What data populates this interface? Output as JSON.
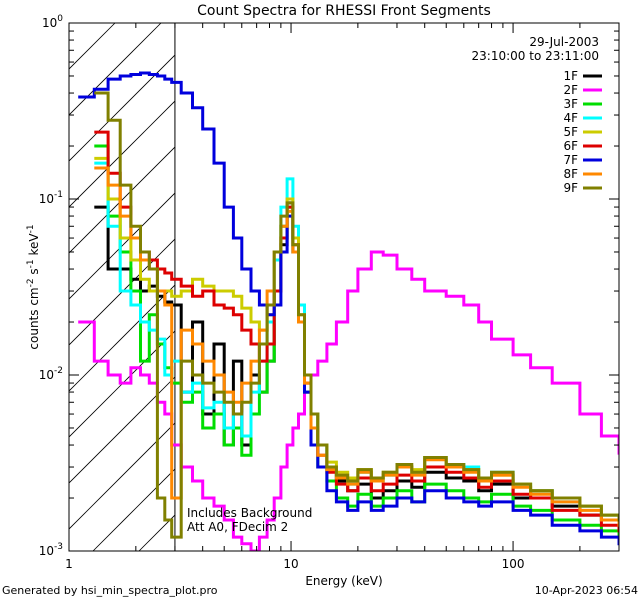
{
  "chart_data": {
    "type": "line",
    "title": "Count Spectra for RHESSI Front Segments",
    "xlabel": "Energy (keV)",
    "ylabel_parts": {
      "base": "counts cm",
      "sup1": "-2",
      "mid": " s",
      "sup2": "-1",
      "end": " keV",
      "sup3": "-1"
    },
    "x_scale": "log",
    "y_scale": "log",
    "xlim": [
      1,
      300
    ],
    "ylim": [
      0.001,
      1.0
    ],
    "x_ticks": [
      {
        "v": 1,
        "label": "1"
      },
      {
        "v": 10,
        "label": "10"
      },
      {
        "v": 100,
        "label": "100"
      }
    ],
    "y_ticks": [
      {
        "v": 1,
        "base": "10",
        "exp": "0"
      },
      {
        "v": 0.1,
        "base": "10",
        "exp": "-1"
      },
      {
        "v": 0.01,
        "base": "10",
        "exp": "-2"
      },
      {
        "v": 0.001,
        "base": "10",
        "exp": "-3"
      }
    ],
    "date": "29-Jul-2003",
    "time_range": "23:10:00 to 23:11:00",
    "hatched_region_max_x": 3.0,
    "annotation_lines": [
      "Includes Background",
      "Att A0, FDecim 2"
    ],
    "legend_position": "top-right",
    "series": [
      {
        "name": "1F",
        "color": "#000000",
        "x": [
          1.3,
          1.5,
          1.7,
          1.9,
          2.1,
          2.3,
          2.5,
          2.7,
          2.9,
          3.2,
          3.6,
          4.0,
          4.5,
          5.0,
          5.5,
          6.0,
          6.6,
          7.2,
          7.8,
          8.4,
          9.0,
          9.6,
          10.2,
          10.8,
          11.5,
          12.3,
          13.2,
          14.5,
          16,
          18,
          20,
          23,
          26,
          30,
          35,
          40,
          50,
          60,
          70,
          80,
          100,
          120,
          150,
          200,
          250,
          300
        ],
        "y": [
          0.09,
          0.04,
          0.04,
          0.035,
          0.03,
          0.032,
          0.028,
          0.026,
          0.025,
          0.008,
          0.02,
          0.006,
          0.015,
          0.004,
          0.012,
          0.004,
          0.01,
          0.008,
          0.012,
          0.03,
          0.055,
          0.095,
          0.06,
          0.02,
          0.01,
          0.006,
          0.004,
          0.003,
          0.0025,
          0.0022,
          0.0024,
          0.002,
          0.0022,
          0.0025,
          0.0023,
          0.0028,
          0.0026,
          0.0025,
          0.0022,
          0.0024,
          0.002,
          0.0022,
          0.0018,
          0.0016,
          0.0015,
          0.0014
        ]
      },
      {
        "name": "2F",
        "color": "#ff00ff",
        "x": [
          1.1,
          1.3,
          1.5,
          1.7,
          1.9,
          2.1,
          2.3,
          2.5,
          2.7,
          2.9,
          3.2,
          3.6,
          4.0,
          4.5,
          5.0,
          5.5,
          6.0,
          6.6,
          7.2,
          7.8,
          8.4,
          9.0,
          9.6,
          10.2,
          10.8,
          11.5,
          12.3,
          13.2,
          14.5,
          16,
          18,
          20,
          23,
          26,
          30,
          35,
          40,
          50,
          60,
          70,
          80,
          100,
          120,
          150,
          200,
          250,
          300
        ],
        "y": [
          0.02,
          0.012,
          0.01,
          0.009,
          0.011,
          0.01,
          0.009,
          0.007,
          0.006,
          0.004,
          0.003,
          0.0025,
          0.002,
          0.0018,
          0.0015,
          0.0012,
          0.0011,
          0.001,
          0.0012,
          0.0015,
          0.002,
          0.003,
          0.004,
          0.005,
          0.006,
          0.008,
          0.01,
          0.012,
          0.015,
          0.02,
          0.03,
          0.04,
          0.05,
          0.048,
          0.04,
          0.035,
          0.03,
          0.028,
          0.025,
          0.02,
          0.016,
          0.013,
          0.011,
          0.009,
          0.006,
          0.0045,
          0.0036
        ]
      },
      {
        "name": "3F",
        "color": "#00dd00",
        "x": [
          1.3,
          1.5,
          1.7,
          1.9,
          2.1,
          2.3,
          2.5,
          2.7,
          2.9,
          3.2,
          3.6,
          4.0,
          4.5,
          5.0,
          5.5,
          6.0,
          6.6,
          7.2,
          7.8,
          8.4,
          9.0,
          9.6,
          10.2,
          10.8,
          11.5,
          12.3,
          13.2,
          14.5,
          16,
          18,
          20,
          23,
          26,
          30,
          35,
          40,
          50,
          60,
          70,
          80,
          100,
          120,
          150,
          200,
          250,
          300
        ],
        "y": [
          0.2,
          0.08,
          0.05,
          0.03,
          0.012,
          0.022,
          0.015,
          0.011,
          0.009,
          0.007,
          0.008,
          0.005,
          0.006,
          0.004,
          0.005,
          0.0035,
          0.006,
          0.008,
          0.012,
          0.03,
          0.07,
          0.09,
          0.05,
          0.02,
          0.008,
          0.005,
          0.003,
          0.0025,
          0.002,
          0.0018,
          0.0021,
          0.0018,
          0.002,
          0.0022,
          0.0019,
          0.0024,
          0.0022,
          0.002,
          0.0019,
          0.0021,
          0.0018,
          0.0017,
          0.0015,
          0.0014,
          0.0013,
          0.0012
        ]
      },
      {
        "name": "4F",
        "color": "#00ffff",
        "x": [
          1.3,
          1.5,
          1.7,
          1.9,
          2.1,
          2.3,
          2.5,
          2.7,
          2.9,
          3.2,
          3.6,
          4.0,
          4.5,
          5.0,
          5.5,
          6.0,
          6.6,
          7.2,
          7.8,
          8.4,
          9.0,
          9.6,
          10.2,
          10.8,
          11.5,
          12.3,
          13.2,
          14.5,
          16,
          18,
          20,
          23,
          26,
          30,
          35,
          40,
          50,
          60,
          70,
          80,
          100,
          120,
          150,
          200,
          250,
          300
        ],
        "y": [
          0.16,
          0.07,
          0.03,
          0.025,
          0.02,
          0.018,
          0.016,
          0.01,
          0.012,
          0.008,
          0.009,
          0.0065,
          0.007,
          0.005,
          0.006,
          0.0045,
          0.008,
          0.012,
          0.02,
          0.045,
          0.09,
          0.13,
          0.07,
          0.025,
          0.01,
          0.006,
          0.004,
          0.003,
          0.0026,
          0.0024,
          0.0028,
          0.0025,
          0.0027,
          0.003,
          0.0028,
          0.0034,
          0.0031,
          0.003,
          0.0026,
          0.0028,
          0.0024,
          0.0022,
          0.0019,
          0.0018,
          0.0016,
          0.0015
        ]
      },
      {
        "name": "5F",
        "color": "#cccc00",
        "x": [
          1.3,
          1.5,
          1.7,
          1.9,
          2.1,
          2.3,
          2.5,
          2.7,
          2.9,
          3.2,
          3.6,
          4.0,
          4.5,
          5.0,
          5.5,
          6.0,
          6.6,
          7.2,
          7.8,
          8.4,
          9.0,
          9.6,
          10.2,
          10.8,
          11.5,
          12.3,
          13.2,
          14.5,
          16,
          18,
          20,
          23,
          26,
          30,
          35,
          40,
          50,
          60,
          70,
          80,
          100,
          120,
          150,
          200,
          250,
          300
        ],
        "y": [
          0.17,
          0.1,
          0.06,
          0.045,
          0.035,
          0.03,
          0.03,
          0.03,
          0.028,
          0.03,
          0.035,
          0.032,
          0.03,
          0.03,
          0.028,
          0.024,
          0.02,
          0.018,
          0.022,
          0.03,
          0.06,
          0.1,
          0.06,
          0.022,
          0.01,
          0.006,
          0.004,
          0.0032,
          0.0028,
          0.0026,
          0.0029,
          0.0026,
          0.0028,
          0.003,
          0.0029,
          0.0034,
          0.003,
          0.0029,
          0.0026,
          0.0027,
          0.0024,
          0.0022,
          0.002,
          0.0018,
          0.0016,
          0.0015
        ]
      },
      {
        "name": "6F",
        "color": "#dd0000",
        "x": [
          1.3,
          1.5,
          1.7,
          1.9,
          2.1,
          2.3,
          2.5,
          2.7,
          2.9,
          3.2,
          3.6,
          4.0,
          4.5,
          5.0,
          5.5,
          6.0,
          6.6,
          7.2,
          7.8,
          8.4,
          9.0,
          9.6,
          10.2,
          10.8,
          11.5,
          12.3,
          13.2,
          14.5,
          16,
          18,
          20,
          23,
          26,
          30,
          35,
          40,
          50,
          60,
          70,
          80,
          100,
          120,
          150,
          200,
          250,
          300
        ],
        "y": [
          0.24,
          0.14,
          0.09,
          0.06,
          0.05,
          0.045,
          0.04,
          0.038,
          0.035,
          0.032,
          0.028,
          0.03,
          0.025,
          0.024,
          0.022,
          0.018,
          0.015,
          0.012,
          0.015,
          0.03,
          0.06,
          0.09,
          0.055,
          0.02,
          0.009,
          0.005,
          0.0035,
          0.0028,
          0.0024,
          0.0022,
          0.0026,
          0.0022,
          0.0024,
          0.0027,
          0.0025,
          0.003,
          0.0028,
          0.0026,
          0.0023,
          0.0025,
          0.0021,
          0.002,
          0.0017,
          0.0016,
          0.0014,
          0.0013
        ]
      },
      {
        "name": "7F",
        "color": "#0000dd",
        "x": [
          1.1,
          1.3,
          1.5,
          1.7,
          1.9,
          2.1,
          2.3,
          2.5,
          2.7,
          2.9,
          3.2,
          3.6,
          4.0,
          4.5,
          5.0,
          5.5,
          6.0,
          6.6,
          7.2,
          7.8,
          8.4,
          9.0,
          9.6,
          10.2,
          10.8,
          11.5,
          12.3,
          13.2,
          14.5,
          16,
          18,
          20,
          23,
          26,
          30,
          35,
          40,
          50,
          60,
          70,
          80,
          100,
          120,
          150,
          200,
          250,
          300
        ],
        "y": [
          0.38,
          0.42,
          0.48,
          0.5,
          0.51,
          0.52,
          0.51,
          0.5,
          0.48,
          0.46,
          0.4,
          0.33,
          0.25,
          0.16,
          0.09,
          0.06,
          0.04,
          0.03,
          0.025,
          0.022,
          0.025,
          0.05,
          0.08,
          0.05,
          0.02,
          0.008,
          0.004,
          0.003,
          0.0022,
          0.0019,
          0.0017,
          0.0019,
          0.0017,
          0.0018,
          0.002,
          0.0019,
          0.0022,
          0.002,
          0.0019,
          0.0018,
          0.0019,
          0.0017,
          0.0016,
          0.0014,
          0.0013,
          0.0012,
          0.0011
        ]
      },
      {
        "name": "8F",
        "color": "#ff8800",
        "x": [
          1.3,
          1.5,
          1.7,
          1.9,
          2.1,
          2.3,
          2.5,
          2.7,
          2.9,
          3.2,
          3.6,
          4.0,
          4.5,
          5.0,
          5.5,
          6.0,
          6.6,
          7.2,
          7.8,
          8.4,
          9.0,
          9.6,
          10.2,
          10.8,
          11.5,
          12.3,
          13.2,
          14.5,
          16,
          18,
          20,
          23,
          26,
          30,
          35,
          40,
          50,
          60,
          70,
          80,
          100,
          120,
          150,
          200,
          250,
          300
        ],
        "y": [
          0.15,
          0.12,
          0.08,
          0.06,
          0.045,
          0.04,
          0.03,
          0.025,
          0.002,
          0.018,
          0.015,
          0.012,
          0.01,
          0.008,
          0.007,
          0.009,
          0.012,
          0.018,
          0.03,
          0.05,
          0.07,
          0.085,
          0.05,
          0.02,
          0.009,
          0.005,
          0.0035,
          0.0029,
          0.0026,
          0.0024,
          0.0028,
          0.0025,
          0.0027,
          0.003,
          0.0027,
          0.0033,
          0.003,
          0.0028,
          0.0025,
          0.0027,
          0.0023,
          0.0021,
          0.0019,
          0.0017,
          0.0015,
          0.0014
        ]
      },
      {
        "name": "9F",
        "color": "#808000",
        "x": [
          1.3,
          1.5,
          1.7,
          1.9,
          2.1,
          2.3,
          2.5,
          2.7,
          2.9,
          3.2,
          3.6,
          4.0,
          4.5,
          5.0,
          5.5,
          6.0,
          6.6,
          7.2,
          7.8,
          8.4,
          9.0,
          9.6,
          10.2,
          10.8,
          11.5,
          12.3,
          13.2,
          14.5,
          16,
          18,
          20,
          23,
          26,
          30,
          35,
          40,
          50,
          60,
          70,
          80,
          100,
          120,
          150,
          200,
          250,
          300
        ],
        "y": [
          0.4,
          0.28,
          0.12,
          0.07,
          0.05,
          0.04,
          0.002,
          0.0015,
          0.0012,
          0.012,
          0.01,
          0.009,
          0.008,
          0.007,
          0.006,
          0.007,
          0.009,
          0.015,
          0.025,
          0.05,
          0.08,
          0.095,
          0.055,
          0.022,
          0.01,
          0.006,
          0.004,
          0.003,
          0.0027,
          0.0025,
          0.0029,
          0.0026,
          0.0028,
          0.0031,
          0.0028,
          0.0034,
          0.0031,
          0.0029,
          0.0026,
          0.0028,
          0.0024,
          0.0022,
          0.002,
          0.0018,
          0.0016,
          0.0015
        ]
      }
    ]
  },
  "footer": {
    "left": "Generated by hsi_min_spectra_plot.pro",
    "right": "10-Apr-2023 06:54"
  }
}
